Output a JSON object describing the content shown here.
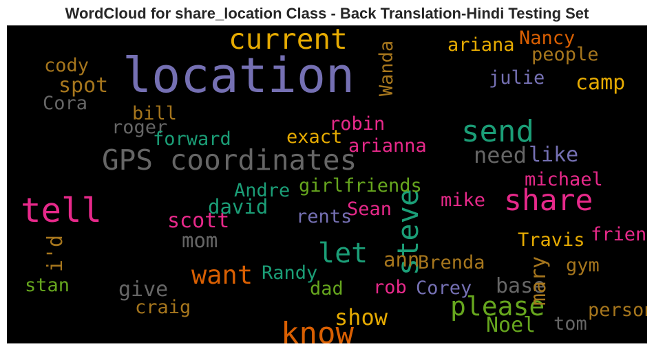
{
  "title": "WordCloud for share_location Class - Back Translation-Hindi Testing Set",
  "palette": {
    "background": "#000000",
    "title": "#262626"
  },
  "chart_data": {
    "type": "wordcloud",
    "title": "WordCloud for share_location Class - Back Translation-Hindi Testing Set",
    "background": "#000000",
    "words": [
      {
        "text": "location",
        "weight": 1.0,
        "color": "#7570b3",
        "orientation": "horizontal"
      },
      {
        "text": "tell",
        "weight": 0.62,
        "color": "#e7298a",
        "orientation": "horizontal"
      },
      {
        "text": "know",
        "weight": 0.52,
        "color": "#d95f02",
        "orientation": "horizontal"
      },
      {
        "text": "send",
        "weight": 0.52,
        "color": "#1b9e77",
        "orientation": "horizontal"
      },
      {
        "text": "share",
        "weight": 0.5,
        "color": "#e7298a",
        "orientation": "horizontal"
      },
      {
        "text": "steve",
        "weight": 0.48,
        "color": "#1b9e77",
        "orientation": "vertical"
      },
      {
        "text": "GPS coordinates",
        "weight": 0.47,
        "color": "#666666",
        "orientation": "horizontal"
      },
      {
        "text": "current",
        "weight": 0.46,
        "color": "#e6ab02",
        "orientation": "horizontal"
      },
      {
        "text": "let",
        "weight": 0.44,
        "color": "#1b9e77",
        "orientation": "horizontal"
      },
      {
        "text": "please",
        "weight": 0.4,
        "color": "#66a61e",
        "orientation": "horizontal"
      },
      {
        "text": "want",
        "weight": 0.39,
        "color": "#d95f02",
        "orientation": "horizontal"
      },
      {
        "text": "need",
        "weight": 0.3,
        "color": "#666666",
        "orientation": "horizontal"
      },
      {
        "text": "show",
        "weight": 0.29,
        "color": "#e6ab02",
        "orientation": "horizontal"
      },
      {
        "text": "spot",
        "weight": 0.26,
        "color": "#a6761d",
        "orientation": "horizontal"
      },
      {
        "text": "camp",
        "weight": 0.26,
        "color": "#e6ab02",
        "orientation": "horizontal"
      },
      {
        "text": "like",
        "weight": 0.26,
        "color": "#7570b3",
        "orientation": "horizontal"
      },
      {
        "text": "scott",
        "weight": 0.26,
        "color": "#e7298a",
        "orientation": "horizontal"
      },
      {
        "text": "give",
        "weight": 0.26,
        "color": "#666666",
        "orientation": "horizontal"
      },
      {
        "text": "base",
        "weight": 0.26,
        "color": "#666666",
        "orientation": "horizontal"
      },
      {
        "text": "Noel",
        "weight": 0.26,
        "color": "#66a61e",
        "orientation": "horizontal"
      },
      {
        "text": "mary",
        "weight": 0.25,
        "color": "#a6761d",
        "orientation": "vertical"
      },
      {
        "text": "i'd",
        "weight": 0.25,
        "color": "#a6761d",
        "orientation": "vertical"
      },
      {
        "text": "mom",
        "weight": 0.24,
        "color": "#666666",
        "orientation": "horizontal"
      },
      {
        "text": "david",
        "weight": 0.24,
        "color": "#1b9e77",
        "orientation": "horizontal"
      },
      {
        "text": "ann",
        "weight": 0.24,
        "color": "#a6761d",
        "orientation": "horizontal"
      },
      {
        "text": "Nancy",
        "weight": 0.2,
        "color": "#d95f02",
        "orientation": "horizontal"
      },
      {
        "text": "ariana",
        "weight": 0.2,
        "color": "#e6ab02",
        "orientation": "horizontal"
      },
      {
        "text": "people",
        "weight": 0.2,
        "color": "#a6761d",
        "orientation": "horizontal"
      },
      {
        "text": "cody",
        "weight": 0.2,
        "color": "#a6761d",
        "orientation": "horizontal"
      },
      {
        "text": "Wanda",
        "weight": 0.2,
        "color": "#a6761d",
        "orientation": "vertical"
      },
      {
        "text": "julie",
        "weight": 0.2,
        "color": "#7570b3",
        "orientation": "horizontal"
      },
      {
        "text": "Cora",
        "weight": 0.2,
        "color": "#666666",
        "orientation": "horizontal"
      },
      {
        "text": "bill",
        "weight": 0.2,
        "color": "#a6761d",
        "orientation": "horizontal"
      },
      {
        "text": "roger",
        "weight": 0.2,
        "color": "#666666",
        "orientation": "horizontal"
      },
      {
        "text": "robin",
        "weight": 0.2,
        "color": "#e7298a",
        "orientation": "horizontal"
      },
      {
        "text": "forward",
        "weight": 0.2,
        "color": "#1b9e77",
        "orientation": "horizontal"
      },
      {
        "text": "exact",
        "weight": 0.2,
        "color": "#e6ab02",
        "orientation": "horizontal"
      },
      {
        "text": "arianna",
        "weight": 0.2,
        "color": "#e7298a",
        "orientation": "horizontal"
      },
      {
        "text": "michael",
        "weight": 0.2,
        "color": "#e7298a",
        "orientation": "horizontal"
      },
      {
        "text": "girlfriends",
        "weight": 0.2,
        "color": "#66a61e",
        "orientation": "horizontal"
      },
      {
        "text": "Andre",
        "weight": 0.2,
        "color": "#1b9e77",
        "orientation": "horizontal"
      },
      {
        "text": "mike",
        "weight": 0.2,
        "color": "#e7298a",
        "orientation": "horizontal"
      },
      {
        "text": "Sean",
        "weight": 0.2,
        "color": "#e7298a",
        "orientation": "horizontal"
      },
      {
        "text": "rents",
        "weight": 0.2,
        "color": "#7570b3",
        "orientation": "horizontal"
      },
      {
        "text": "friend",
        "weight": 0.2,
        "color": "#e7298a",
        "orientation": "horizontal"
      },
      {
        "text": "Travis",
        "weight": 0.2,
        "color": "#e6ab02",
        "orientation": "horizontal"
      },
      {
        "text": "Brenda",
        "weight": 0.2,
        "color": "#a6761d",
        "orientation": "horizontal"
      },
      {
        "text": "gym",
        "weight": 0.2,
        "color": "#a6761d",
        "orientation": "horizontal"
      },
      {
        "text": "Randy",
        "weight": 0.2,
        "color": "#1b9e77",
        "orientation": "horizontal"
      },
      {
        "text": "stan",
        "weight": 0.2,
        "color": "#66a61e",
        "orientation": "horizontal"
      },
      {
        "text": "dad",
        "weight": 0.2,
        "color": "#66a61e",
        "orientation": "horizontal"
      },
      {
        "text": "rob",
        "weight": 0.2,
        "color": "#e7298a",
        "orientation": "horizontal"
      },
      {
        "text": "Corey",
        "weight": 0.2,
        "color": "#7570b3",
        "orientation": "horizontal"
      },
      {
        "text": "craig",
        "weight": 0.2,
        "color": "#a6761d",
        "orientation": "horizontal"
      },
      {
        "text": "person",
        "weight": 0.2,
        "color": "#a6761d",
        "orientation": "horizontal"
      },
      {
        "text": "tom",
        "weight": 0.2,
        "color": "#666666",
        "orientation": "horizontal"
      }
    ]
  }
}
